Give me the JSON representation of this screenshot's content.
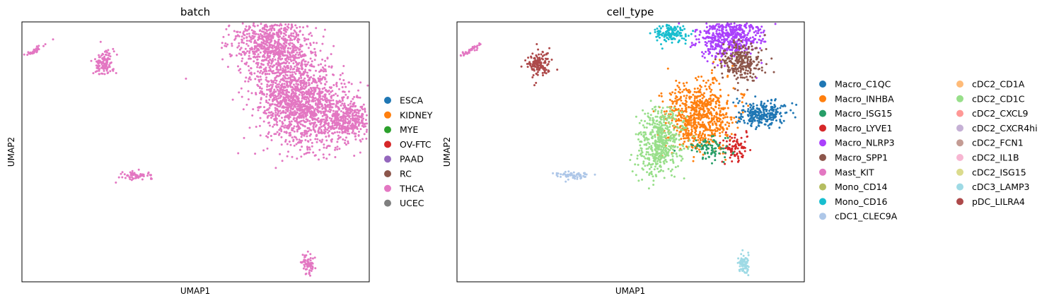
{
  "chart_data": [
    {
      "type": "scatter",
      "title": "batch",
      "xlabel": "UMAP1",
      "ylabel": "UMAP2",
      "legend_position": "right",
      "legend": [
        {
          "label": "ESCA",
          "color": "#1f77b4"
        },
        {
          "label": "KIDNEY",
          "color": "#ff7f0e"
        },
        {
          "label": "MYE",
          "color": "#2ca02c"
        },
        {
          "label": "OV-FTC",
          "color": "#d62728"
        },
        {
          "label": "PAAD",
          "color": "#9467bd"
        },
        {
          "label": "RC",
          "color": "#8c564b"
        },
        {
          "label": "THCA",
          "color": "#e377c2"
        },
        {
          "label": "UCEC",
          "color": "#7f7f7f"
        }
      ],
      "clusters": [
        {
          "category": "THCA",
          "points": [
            [
              -7.6,
              5.4
            ],
            [
              -4.3,
              4.7
            ],
            [
              -2.7,
              -1.5
            ],
            [
              3.7,
              5.8
            ],
            [
              4.8,
              3.2
            ],
            [
              5.7,
              1.8
            ],
            [
              7.3,
              1.5
            ],
            [
              5.5,
              -6.4
            ]
          ]
        }
      ]
    },
    {
      "type": "scatter",
      "title": "cell_type",
      "xlabel": "UMAP1",
      "ylabel": "UMAP2",
      "legend_position": "right",
      "legend": [
        {
          "label": "Macro_C1QC",
          "color": "#1f77b4"
        },
        {
          "label": "Macro_INHBA",
          "color": "#ff7f0e"
        },
        {
          "label": "Macro_ISG15",
          "color": "#279e68"
        },
        {
          "label": "Macro_LYVE1",
          "color": "#d62728"
        },
        {
          "label": "Macro_NLRP3",
          "color": "#aa40fc"
        },
        {
          "label": "Macro_SPP1",
          "color": "#8c564b"
        },
        {
          "label": "Mast_KIT",
          "color": "#e377c2"
        },
        {
          "label": "Mono_CD14",
          "color": "#b5bd61"
        },
        {
          "label": "Mono_CD16",
          "color": "#17becf"
        },
        {
          "label": "cDC1_CLEC9A",
          "color": "#aec7e8"
        },
        {
          "label": "cDC2_CD1A",
          "color": "#ffbb78"
        },
        {
          "label": "cDC2_CD1C",
          "color": "#98df8a"
        },
        {
          "label": "cDC2_CXCL9",
          "color": "#ff9896"
        },
        {
          "label": "cDC2_CXCR4hi",
          "color": "#c5b0d5"
        },
        {
          "label": "cDC2_FCN1",
          "color": "#c49c94"
        },
        {
          "label": "cDC2_IL1B",
          "color": "#f7b6d2"
        },
        {
          "label": "cDC2_ISG15",
          "color": "#dbdb8d"
        },
        {
          "label": "cDC3_LAMP3",
          "color": "#9edae5"
        },
        {
          "label": "pDC_LILRA4",
          "color": "#ad494a"
        }
      ],
      "clusters": [
        {
          "category": "Mast_KIT",
          "points": [
            [
              -7.6,
              5.4
            ]
          ]
        },
        {
          "category": "pDC_LILRA4",
          "points": [
            [
              -4.3,
              4.7
            ]
          ]
        },
        {
          "category": "cDC1_CLEC9A",
          "points": [
            [
              -2.7,
              -1.5
            ]
          ]
        },
        {
          "category": "Mono_CD16",
          "points": [
            [
              2.0,
              6.4
            ]
          ]
        },
        {
          "category": "Macro_NLRP3",
          "points": [
            [
              4.8,
              6.2
            ]
          ]
        },
        {
          "category": "Macro_SPP1",
          "points": [
            [
              5.4,
              4.8
            ]
          ]
        },
        {
          "category": "Macro_INHBA",
          "points": [
            [
              3.4,
              1.8
            ]
          ]
        },
        {
          "category": "cDC2_CD1C",
          "points": [
            [
              1.5,
              0.3
            ]
          ]
        },
        {
          "category": "Macro_C1QC",
          "points": [
            [
              6.4,
              1.9
            ]
          ]
        },
        {
          "category": "Macro_LYVE1",
          "points": [
            [
              5.1,
              0.1
            ]
          ]
        },
        {
          "category": "Macro_ISG15",
          "points": [
            [
              3.9,
              0.0
            ]
          ]
        },
        {
          "category": "cDC3_LAMP3",
          "points": [
            [
              5.5,
              -6.4
            ]
          ]
        }
      ]
    }
  ]
}
